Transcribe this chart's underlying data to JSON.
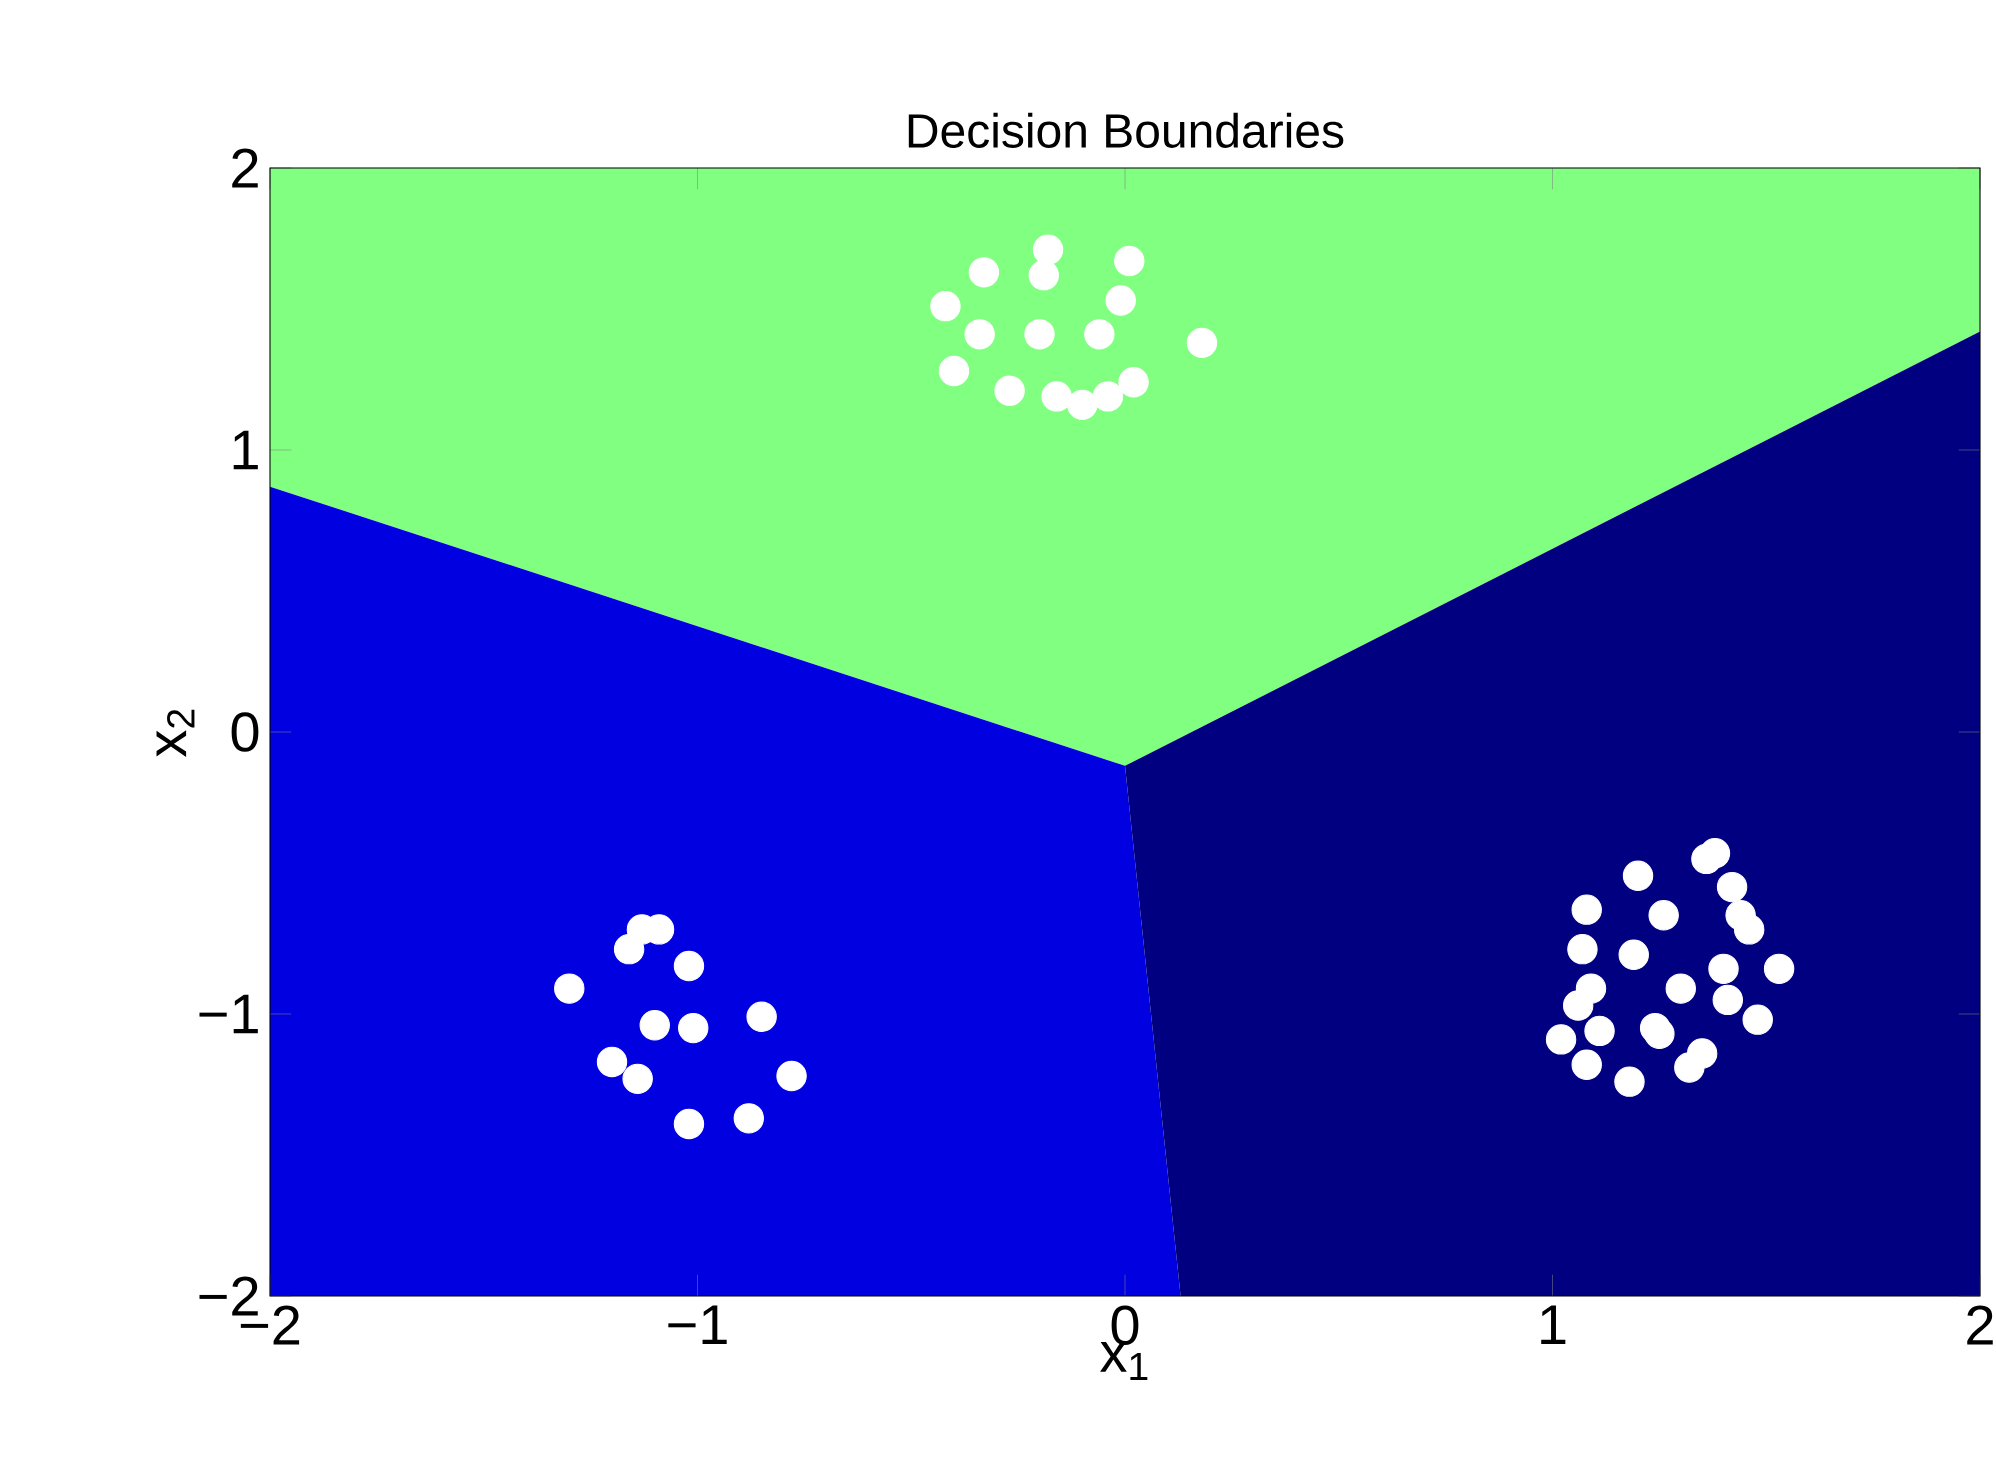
{
  "chart_data": {
    "type": "scatter",
    "title": "Decision Boundaries",
    "xlabel": "x$_{1}$",
    "ylabel": "x$_{2}$",
    "xlim": [
      -2,
      2
    ],
    "ylim": [
      -2,
      2
    ],
    "xticks": [
      {
        "value": -2,
        "label": "−2"
      },
      {
        "value": -1,
        "label": "−1"
      },
      0,
      1,
      2
    ],
    "yticks": [
      {
        "value": -2,
        "label": "−2"
      },
      {
        "value": -1,
        "label": "−1"
      },
      0,
      1,
      2
    ],
    "grid": false,
    "legend": false,
    "series": [
      {
        "type": "area",
        "color": "#80ff80",
        "x": [
          -2,
          0,
          2,
          2,
          -2
        ],
        "values": [
          0.87,
          -0.12,
          1.42,
          2,
          2
        ]
      },
      {
        "type": "area",
        "color": "#0000e0",
        "x": [
          -2,
          0,
          0.13,
          -2
        ],
        "values": [
          0.87,
          -0.12,
          -2,
          -2
        ]
      },
      {
        "type": "area",
        "color": "#000080",
        "x": [
          0,
          2,
          2,
          0.13
        ],
        "values": [
          -0.12,
          1.42,
          -2,
          -2
        ]
      },
      {
        "color": "#ffffff",
        "x": [
          -0.42,
          -0.33,
          -0.18,
          -0.19,
          0.01,
          -0.34,
          -0.2,
          -0.06,
          -0.01,
          -0.4,
          -0.27,
          -0.16,
          -0.1,
          -0.04,
          0.02,
          0.18,
          -1.3,
          -1.16,
          -1.13,
          -1.09,
          -1.02,
          -1.1,
          -1.01,
          -0.85,
          -1.2,
          -1.14,
          -1.02,
          -0.88,
          -0.78,
          1.08,
          1.2,
          1.26,
          1.36,
          1.38,
          1.42,
          1.44,
          1.46,
          1.07,
          1.19,
          1.4,
          1.53,
          1.09,
          1.3,
          1.41,
          1.06,
          1.11,
          1.24,
          1.25,
          1.48,
          1.02,
          1.08,
          1.35,
          1.32,
          1.18
        ],
        "values": [
          1.51,
          1.63,
          1.71,
          1.62,
          1.67,
          1.41,
          1.41,
          1.41,
          1.53,
          1.28,
          1.21,
          1.19,
          1.16,
          1.19,
          1.24,
          1.38,
          -0.91,
          -0.77,
          -0.7,
          -0.7,
          -0.83,
          -1.04,
          -1.05,
          -1.01,
          -1.17,
          -1.23,
          -1.39,
          -1.37,
          -1.22,
          -0.63,
          -0.51,
          -0.65,
          -0.45,
          -0.43,
          -0.55,
          -0.65,
          -0.7,
          -0.77,
          -0.79,
          -0.84,
          -0.84,
          -0.91,
          -0.91,
          -0.95,
          -0.97,
          -1.06,
          -1.05,
          -1.07,
          -1.02,
          -1.09,
          -1.18,
          -1.14,
          -1.19,
          -1.24
        ]
      }
    ]
  }
}
